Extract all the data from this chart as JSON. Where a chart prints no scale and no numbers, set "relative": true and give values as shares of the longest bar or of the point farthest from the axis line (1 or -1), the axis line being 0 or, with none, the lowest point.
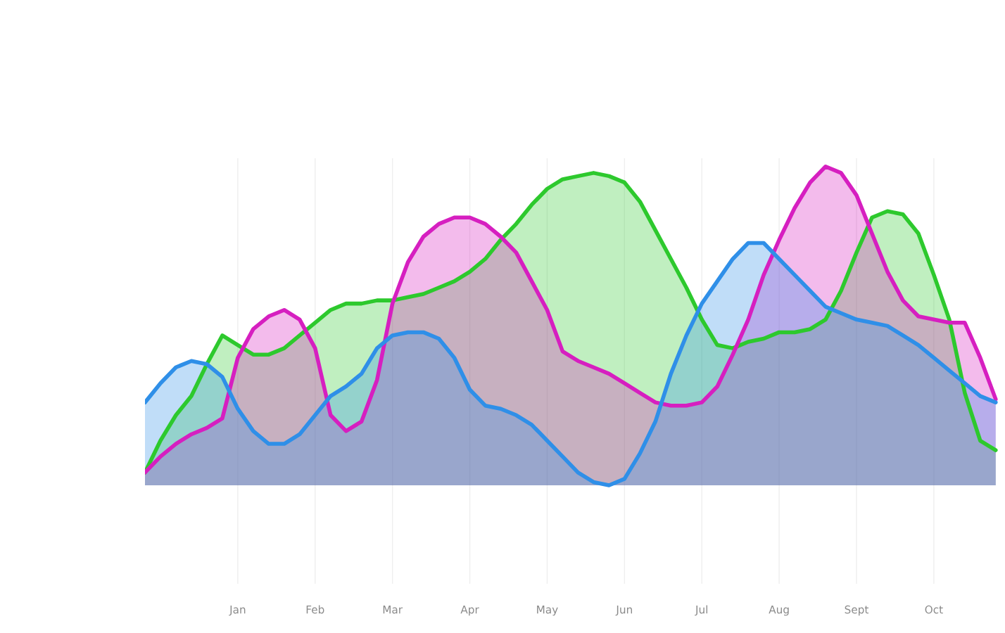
{
  "chart_data": {
    "type": "area",
    "relative": true,
    "grid": "x",
    "tick_labels": "x",
    "categories": [
      null,
      null,
      null,
      null,
      null,
      null,
      "Jan",
      null,
      null,
      null,
      null,
      "Feb",
      null,
      null,
      null,
      null,
      "Mar",
      null,
      null,
      null,
      null,
      "Apr",
      null,
      null,
      null,
      null,
      "May",
      null,
      null,
      null,
      null,
      "Jun",
      null,
      null,
      null,
      null,
      "Jul",
      null,
      null,
      null,
      null,
      "Aug",
      null,
      null,
      null,
      null,
      "Sept",
      null,
      null,
      null,
      null,
      "Oct",
      null,
      null,
      null,
      null
    ],
    "series": [
      {
        "color": "#2dc92d",
        "values": [
          0.04,
          0.14,
          0.22,
          0.28,
          0.38,
          0.47,
          0.44,
          0.41,
          0.41,
          0.43,
          0.47,
          0.51,
          0.55,
          0.57,
          0.57,
          0.58,
          0.58,
          0.59,
          0.6,
          0.62,
          0.64,
          0.67,
          0.71,
          0.77,
          0.82,
          0.88,
          0.93,
          0.96,
          0.97,
          0.98,
          0.97,
          0.95,
          0.89,
          0.8,
          0.71,
          0.62,
          0.52,
          0.44,
          0.43,
          0.45,
          0.46,
          0.48,
          0.48,
          0.49,
          0.52,
          0.61,
          0.73,
          0.84,
          0.86,
          0.85,
          0.79,
          0.66,
          0.52,
          0.29,
          0.14,
          0.11
        ]
      },
      {
        "color": "#d61fc0",
        "values": [
          0.04,
          0.09,
          0.13,
          0.16,
          0.18,
          0.21,
          0.4,
          0.49,
          0.53,
          0.55,
          0.52,
          0.43,
          0.22,
          0.17,
          0.2,
          0.33,
          0.57,
          0.7,
          0.78,
          0.82,
          0.84,
          0.84,
          0.82,
          0.78,
          0.73,
          0.64,
          0.55,
          0.42,
          0.39,
          0.37,
          0.35,
          0.32,
          0.29,
          0.26,
          0.25,
          0.25,
          0.26,
          0.31,
          0.41,
          0.52,
          0.66,
          0.77,
          0.87,
          0.95,
          1,
          0.98,
          0.91,
          0.79,
          0.67,
          0.58,
          0.53,
          0.52,
          0.51,
          0.51,
          0.4,
          0.27
        ]
      },
      {
        "color": "#2f8fe8",
        "values": [
          0.26,
          0.32,
          0.37,
          0.39,
          0.38,
          0.34,
          0.24,
          0.17,
          0.13,
          0.13,
          0.16,
          0.22,
          0.28,
          0.31,
          0.35,
          0.43,
          0.47,
          0.48,
          0.48,
          0.46,
          0.4,
          0.3,
          0.25,
          0.24,
          0.22,
          0.19,
          0.14,
          0.09,
          0.04,
          0.01,
          0,
          0.02,
          0.1,
          0.2,
          0.35,
          0.47,
          0.57,
          0.64,
          0.71,
          0.76,
          0.76,
          0.71,
          0.66,
          0.61,
          0.56,
          0.54,
          0.52,
          0.51,
          0.5,
          0.47,
          0.44,
          0.4,
          0.36,
          0.32,
          0.28,
          0.26
        ]
      }
    ]
  }
}
